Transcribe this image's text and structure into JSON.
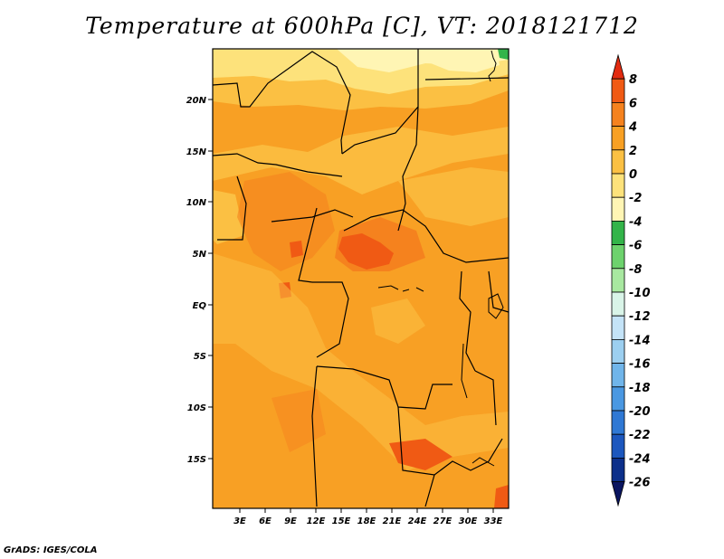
{
  "title": "Temperature at 600hPa [C], VT: 2018121712",
  "footer": "GrADS: IGES/COLA",
  "map": {
    "lat_ticks": [
      "20N",
      "15N",
      "10N",
      "5N",
      "EQ",
      "5S",
      "10S",
      "15S"
    ],
    "lon_ticks": [
      "3E",
      "6E",
      "9E",
      "12E",
      "15E",
      "18E",
      "21E",
      "24E",
      "27E",
      "30E",
      "33E"
    ]
  },
  "colorbar": {
    "labels": [
      "8",
      "6",
      "4",
      "2",
      "0",
      "-2",
      "-4",
      "-6",
      "-8",
      "-10",
      "-12",
      "-14",
      "-16",
      "-18",
      "-20",
      "-22",
      "-24",
      "-26"
    ],
    "colors": [
      "#e22b10",
      "#f05a14",
      "#f5821e",
      "#f8a024",
      "#fbc043",
      "#fde27b",
      "#fff5b4",
      "#33b449",
      "#6dd26d",
      "#a8e8a0",
      "#d9f4e8",
      "#c4e3f7",
      "#9ccff0",
      "#70b5ea",
      "#4a98e2",
      "#2f78d4",
      "#1c57be",
      "#0c2f8a",
      "#0a1560"
    ]
  },
  "colors": {
    "base": "#f8a024",
    "warm": "#f5821e",
    "hot": "#f05a14",
    "mild": "#fbc043",
    "cool": "#fde27b",
    "cold": "#fff5b4",
    "green": "#33b449"
  }
}
